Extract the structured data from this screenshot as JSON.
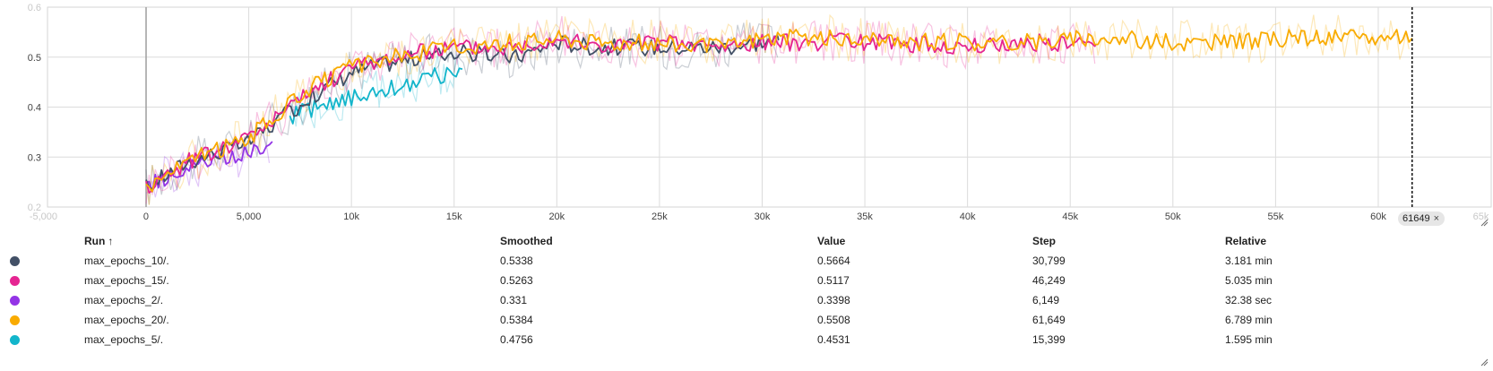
{
  "chart_data": {
    "type": "line",
    "title": "",
    "xlabel": "",
    "ylabel": "",
    "xlim": [
      -4800,
      65500
    ],
    "ylim": [
      0.2,
      0.6
    ],
    "grid": true,
    "x_ticks": [
      {
        "value": -5000,
        "label": "-5,000",
        "faint": true
      },
      {
        "value": 0,
        "label": "0"
      },
      {
        "value": 5000,
        "label": "5,000"
      },
      {
        "value": 10000,
        "label": "10k"
      },
      {
        "value": 15000,
        "label": "15k"
      },
      {
        "value": 20000,
        "label": "20k"
      },
      {
        "value": 25000,
        "label": "25k"
      },
      {
        "value": 30000,
        "label": "30k"
      },
      {
        "value": 35000,
        "label": "35k"
      },
      {
        "value": 40000,
        "label": "40k"
      },
      {
        "value": 45000,
        "label": "45k"
      },
      {
        "value": 50000,
        "label": "50k"
      },
      {
        "value": 55000,
        "label": "55k"
      },
      {
        "value": 60000,
        "label": "60k"
      },
      {
        "value": 65000,
        "label": "65k",
        "faint": true
      }
    ],
    "y_ticks": [
      {
        "value": 0.2,
        "label": "0.2",
        "faint": true
      },
      {
        "value": 0.3,
        "label": "0.3"
      },
      {
        "value": 0.4,
        "label": "0.4"
      },
      {
        "value": 0.5,
        "label": "0.5"
      },
      {
        "value": 0.6,
        "label": "0.6",
        "faint": true
      }
    ],
    "cursor_step": 61649,
    "series": [
      {
        "name": "max_epochs_10/.",
        "color": "#425066",
        "x": [
          0,
          2000,
          5000,
          8000,
          10000,
          12000,
          15000,
          18000,
          20000,
          22000,
          25000,
          28000,
          30799
        ],
        "y": [
          0.24,
          0.29,
          0.33,
          0.42,
          0.47,
          0.49,
          0.51,
          0.5,
          0.53,
          0.52,
          0.52,
          0.52,
          0.534
        ]
      },
      {
        "name": "max_epochs_15/.",
        "color": "#e52592",
        "x": [
          0,
          2000,
          5000,
          8000,
          10000,
          12000,
          15000,
          18000,
          20000,
          22000,
          25000,
          28000,
          30000,
          33000,
          36000,
          40000,
          43000,
          46249
        ],
        "y": [
          0.24,
          0.29,
          0.34,
          0.43,
          0.48,
          0.5,
          0.52,
          0.52,
          0.54,
          0.52,
          0.53,
          0.52,
          0.53,
          0.53,
          0.53,
          0.52,
          0.53,
          0.526
        ]
      },
      {
        "name": "max_epochs_2/.",
        "color": "#9334e6",
        "x": [
          0,
          1500,
          3000,
          4500,
          6149
        ],
        "y": [
          0.24,
          0.27,
          0.29,
          0.3,
          0.331
        ]
      },
      {
        "name": "max_epochs_20/.",
        "color": "#f9ab00",
        "x": [
          0,
          2000,
          5000,
          8000,
          10000,
          12000,
          15000,
          18000,
          20000,
          22000,
          25000,
          28000,
          30000,
          33000,
          36000,
          40000,
          43000,
          46000,
          50000,
          53000,
          56000,
          60000,
          61649
        ],
        "y": [
          0.24,
          0.29,
          0.34,
          0.44,
          0.48,
          0.5,
          0.52,
          0.53,
          0.54,
          0.53,
          0.53,
          0.52,
          0.54,
          0.54,
          0.53,
          0.53,
          0.53,
          0.54,
          0.53,
          0.53,
          0.54,
          0.54,
          0.538
        ]
      },
      {
        "name": "max_epochs_5/.",
        "color": "#12b5cb",
        "x": [
          7000,
          9000,
          11000,
          13000,
          15399
        ],
        "y": [
          0.38,
          0.41,
          0.43,
          0.45,
          0.476
        ]
      }
    ]
  },
  "cursor_chip": {
    "label": "61649",
    "close": "×"
  },
  "table": {
    "headers": {
      "run": "Run",
      "run_sort": "↑",
      "smoothed": "Smoothed",
      "value": "Value",
      "step": "Step",
      "relative": "Relative"
    },
    "rows": [
      {
        "color": "#425066",
        "run": "max_epochs_10/.",
        "smoothed": "0.5338",
        "value": "0.5664",
        "step": "30,799",
        "relative": "3.181 min"
      },
      {
        "color": "#e52592",
        "run": "max_epochs_15/.",
        "smoothed": "0.5263",
        "value": "0.5117",
        "step": "46,249",
        "relative": "5.035 min"
      },
      {
        "color": "#9334e6",
        "run": "max_epochs_2/.",
        "smoothed": "0.331",
        "value": "0.3398",
        "step": "6,149",
        "relative": "32.38 sec"
      },
      {
        "color": "#f9ab00",
        "run": "max_epochs_20/.",
        "smoothed": "0.5384",
        "value": "0.5508",
        "step": "61,649",
        "relative": "6.789 min"
      },
      {
        "color": "#12b5cb",
        "run": "max_epochs_5/.",
        "smoothed": "0.4756",
        "value": "0.4531",
        "step": "15,399",
        "relative": "1.595 min"
      }
    ]
  }
}
